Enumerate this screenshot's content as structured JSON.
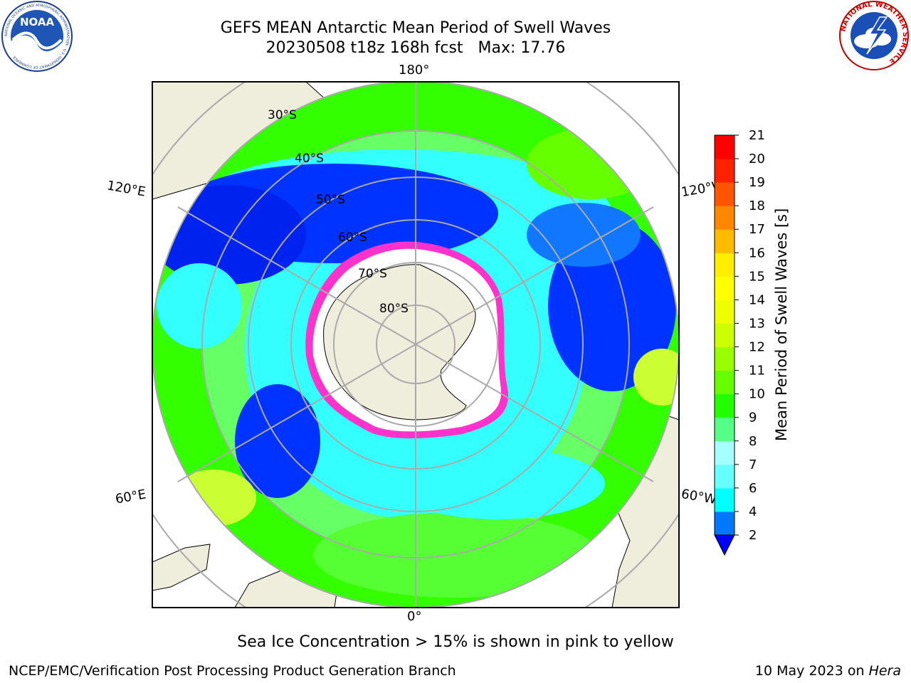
{
  "header": {
    "title_line1": "GEFS MEAN Antarctic Mean Period of Swell Waves",
    "title_line2": "20230508 t18z 168h fcst   Max: 17.76"
  },
  "logos": {
    "left": "NOAA",
    "left_ring_text": "NATIONAL OCEANIC AND ATMOSPHERIC ADMINISTRATION · U.S. DEPARTMENT OF COMMERCE",
    "right_ring_text": "NATIONAL WEATHER SERVICE"
  },
  "map": {
    "projection": "south-polar-stereographic",
    "longitude_labels": {
      "top": "180°",
      "bottom": "0°",
      "left_upper": "120°E",
      "left_lower": "60°E",
      "right_upper": "120°W",
      "right_lower": "60°W"
    },
    "latitude_labels": [
      "30°S",
      "40°S",
      "50°S",
      "60°S",
      "70°S",
      "80°S"
    ],
    "colors": {
      "land": "#efeddc",
      "ice": "#ffffff",
      "ice_edge": "#ff33cc",
      "ocean_low": "#0033ff",
      "ocean_mid": "#33ffff",
      "ocean_high": "#33ff00",
      "grid": "#aaaaaa"
    }
  },
  "colorbar": {
    "label": "Mean Period of Swell Waves [s]",
    "ticks": [
      "2",
      "4",
      "6",
      "7",
      "8",
      "9",
      "10",
      "11",
      "12",
      "13",
      "14",
      "15",
      "16",
      "17",
      "18",
      "19",
      "20",
      "21"
    ],
    "colors": [
      "#0000ff",
      "#0077ff",
      "#00ffff",
      "#66ffff",
      "#a6ffff",
      "#55ff88",
      "#22ff00",
      "#66ff00",
      "#99ff00",
      "#ccff00",
      "#eeff00",
      "#ffff00",
      "#ffee00",
      "#ffbb00",
      "#ff8800",
      "#ff5500",
      "#ff2200",
      "#ff0000"
    ],
    "extend": "min"
  },
  "caption": "Sea Ice Concentration > 15% is shown in pink to yellow",
  "footer": {
    "left": "NCEP/EMC/Verification Post Processing Product Generation Branch",
    "right_prefix": "10 May 2023 on ",
    "right_italic": "Hera"
  }
}
